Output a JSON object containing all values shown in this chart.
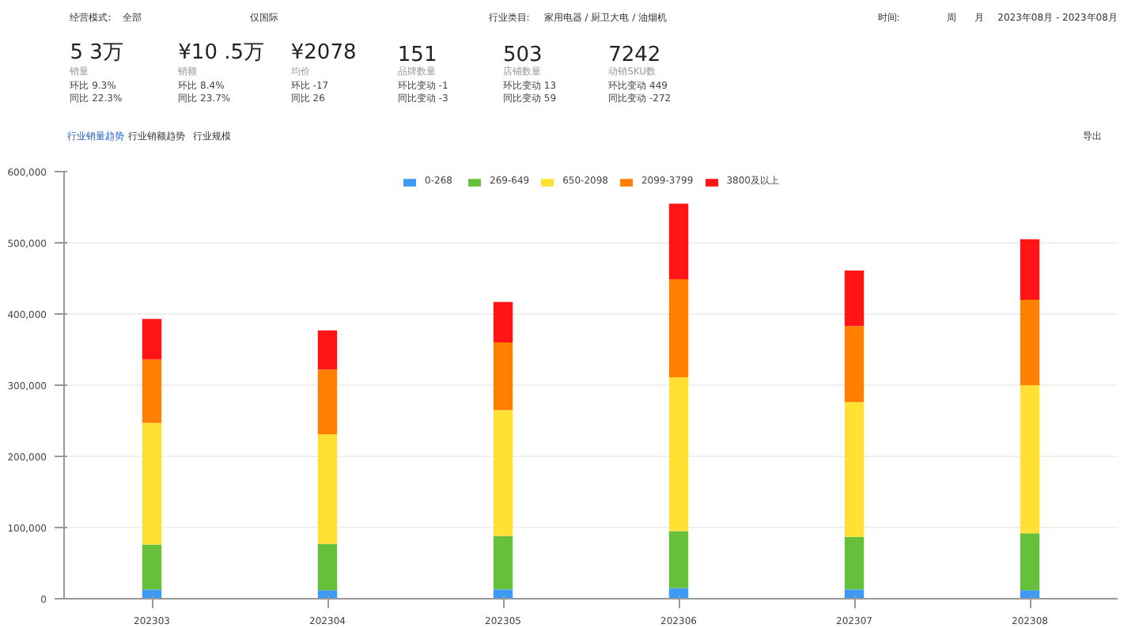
{
  "chart_data": [
    {
      "type": "other",
      "annotations": [
        "经营模式:",
        "全部",
        "仅国际",
        "行业类目:",
        "家用电器 / 厨卫大电 / 油烟机",
        "时间:",
        "周",
        "月",
        "2023年08月 - 2023年08月",
        "5 3万",
        "销量",
        "环比  9.3%",
        "同比  22.3%",
        "¥10 .5万",
        "销额",
        "环比  8.4%",
        "同比  23.7%",
        "¥2078",
        "均价",
        "环比  -17",
        "同比  26",
        "151",
        "品牌数量",
        "环比变动  -1",
        "同比变动  -3",
        "503",
        "店铺数量",
        "环比变动  13",
        "同比变动  59",
        "7242",
        "动销SKU数",
        "环比变动  449",
        "同比变动  -272",
        "行业销量趋势",
        "行业销额趋势",
        "行业规模",
        "导出"
      ]
    },
    {
      "type": "bar",
      "stacked": true,
      "legend": "top",
      "grid": "y",
      "categories": [
        "202303",
        "202304",
        "202305",
        "202306",
        "202307",
        "202308"
      ],
      "ylim": [
        0,
        600000
      ],
      "yticks": [
        0,
        {
          "value": 100000,
          "label": "100,000"
        },
        {
          "value": 200000,
          "label": "200,000"
        },
        {
          "value": 300000,
          "label": "300,000"
        },
        {
          "value": 400000,
          "label": "400,000"
        },
        {
          "value": 500000,
          "label": "500,000"
        },
        {
          "value": 600000,
          "label": "600,000"
        }
      ],
      "series": [
        {
          "name": "0-268",
          "color": "#3d9bf5",
          "values": [
            13000,
            12000,
            13000,
            15000,
            13000,
            12000
          ]
        },
        {
          "name": "269-649",
          "color": "#66c03a",
          "values": [
            63000,
            65000,
            75000,
            80000,
            74000,
            80000
          ]
        },
        {
          "name": "650-2098",
          "color": "#ffe033",
          "values": [
            171000,
            154000,
            177000,
            216000,
            189000,
            208000
          ]
        },
        {
          "name": "2099-3799",
          "color": "#ff8000",
          "values": [
            89000,
            91000,
            95000,
            138000,
            107000,
            120000
          ]
        },
        {
          "name": "3800及以上",
          "color": "#ff1515",
          "values": [
            57000,
            55000,
            57000,
            106000,
            78000,
            85000
          ]
        }
      ]
    }
  ]
}
